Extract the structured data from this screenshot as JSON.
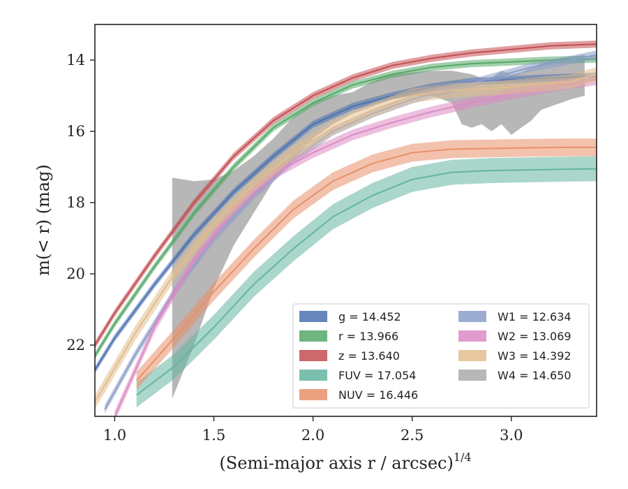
{
  "chart_data": {
    "type": "line",
    "xlabel": "(Semi-major axis r / arcsec)",
    "xlabel_exponent": "1/4",
    "ylabel": "m(< r) (mag)",
    "xlim": [
      0.9,
      3.43
    ],
    "ylim": [
      24.0,
      13.0
    ],
    "y_inverted": true,
    "grid": false,
    "legend_position": "lower-right",
    "x_ticks": [
      1.0,
      1.5,
      2.0,
      2.5,
      3.0
    ],
    "x_tick_labels": [
      "1.0",
      "1.5",
      "2.0",
      "2.5",
      "3.0"
    ],
    "y_ticks": [
      14,
      16,
      18,
      20,
      22
    ],
    "y_tick_labels": [
      "14",
      "16",
      "18",
      "20",
      "22"
    ],
    "series": [
      {
        "name": "g = 14.452",
        "color": "#4c72b0",
        "x": [
          0.9,
          1.0,
          1.2,
          1.4,
          1.6,
          1.8,
          2.0,
          2.2,
          2.4,
          2.6,
          2.8,
          3.0,
          3.2,
          3.43
        ],
        "y": [
          22.7,
          21.8,
          20.3,
          18.9,
          17.7,
          16.7,
          15.8,
          15.3,
          15.0,
          14.75,
          14.6,
          14.55,
          14.5,
          14.45
        ],
        "band": 0.1
      },
      {
        "name": "r = 13.966",
        "color": "#55a868",
        "x": [
          0.9,
          1.0,
          1.2,
          1.4,
          1.6,
          1.8,
          2.0,
          2.2,
          2.4,
          2.6,
          2.8,
          3.0,
          3.2,
          3.43
        ],
        "y": [
          22.3,
          21.4,
          19.8,
          18.3,
          17.0,
          15.9,
          15.2,
          14.7,
          14.4,
          14.2,
          14.1,
          14.05,
          14.0,
          13.97
        ],
        "band": 0.1
      },
      {
        "name": "z = 13.640",
        "color": "#c44e52",
        "x": [
          0.9,
          1.0,
          1.2,
          1.4,
          1.6,
          1.8,
          2.0,
          2.2,
          2.4,
          2.6,
          2.8,
          3.0,
          3.2,
          3.43
        ],
        "y": [
          22.0,
          21.1,
          19.5,
          18.0,
          16.7,
          15.7,
          15.0,
          14.5,
          14.15,
          13.95,
          13.8,
          13.7,
          13.6,
          13.55
        ],
        "band": 0.1
      },
      {
        "name": "FUV = 17.054",
        "color": "#64b5a0",
        "x": [
          1.11,
          1.3,
          1.5,
          1.7,
          1.9,
          2.1,
          2.3,
          2.5,
          2.7,
          2.9,
          3.1,
          3.3,
          3.43
        ],
        "y": [
          23.4,
          22.6,
          21.5,
          20.3,
          19.3,
          18.4,
          17.8,
          17.35,
          17.15,
          17.1,
          17.08,
          17.06,
          17.05
        ],
        "band": 0.35
      },
      {
        "name": "NUV = 16.446",
        "color": "#e8906a",
        "x": [
          1.11,
          1.3,
          1.5,
          1.7,
          1.9,
          2.1,
          2.3,
          2.5,
          2.7,
          2.9,
          3.1,
          3.3,
          3.43
        ],
        "y": [
          23.0,
          21.8,
          20.5,
          19.3,
          18.2,
          17.4,
          16.9,
          16.6,
          16.5,
          16.48,
          16.46,
          16.45,
          16.45
        ],
        "band": 0.25
      },
      {
        "name": "W1 = 12.634",
        "color": "#8c9fca",
        "x": [
          0.95,
          1.1,
          1.3,
          1.5,
          1.7,
          1.9,
          2.1,
          2.3,
          2.5,
          2.7,
          2.9,
          3.1,
          3.3,
          3.43
        ],
        "y": [
          23.8,
          22.3,
          20.5,
          19.0,
          17.8,
          16.8,
          16.0,
          15.5,
          15.1,
          14.8,
          14.5,
          14.2,
          14.0,
          13.85
        ],
        "band": 0.12
      },
      {
        "name": "W2 = 13.069",
        "color": "#dc8bc4",
        "x": [
          1.0,
          1.2,
          1.4,
          1.6,
          1.8,
          2.0,
          2.2,
          2.4,
          2.6,
          2.8,
          3.0,
          3.2,
          3.43
        ],
        "y": [
          24.0,
          21.5,
          19.6,
          18.2,
          17.2,
          16.6,
          16.1,
          15.75,
          15.45,
          15.2,
          14.95,
          14.75,
          14.55
        ],
        "band": 0.15
      },
      {
        "name": "W3 = 14.392",
        "color": "#e2bd8e",
        "x": [
          0.9,
          1.1,
          1.3,
          1.5,
          1.7,
          1.9,
          2.1,
          2.3,
          2.5,
          2.7,
          2.9,
          3.1,
          3.3,
          3.43
        ],
        "y": [
          23.6,
          21.7,
          20.0,
          18.6,
          17.5,
          16.6,
          15.9,
          15.4,
          15.0,
          14.85,
          14.8,
          14.7,
          14.6,
          14.4
        ],
        "band": 0.2
      },
      {
        "name": "W4 = 14.650",
        "color": "#aaaaaa",
        "fill_only": true,
        "x": [
          1.29,
          1.4,
          1.5,
          1.6,
          1.7,
          1.8,
          1.9,
          2.0,
          2.1,
          2.2,
          2.3,
          2.4,
          2.5,
          2.6,
          2.7,
          2.75,
          2.8,
          2.85,
          2.9,
          2.95,
          3.0,
          3.05,
          3.1,
          3.15,
          3.2,
          3.25,
          3.3,
          3.37
        ],
        "y_low": [
          23.5,
          22.0,
          20.4,
          19.2,
          18.3,
          17.4,
          16.8,
          16.2,
          15.8,
          15.5,
          15.3,
          15.1,
          15.0,
          15.0,
          15.2,
          15.8,
          15.9,
          15.8,
          16.0,
          15.8,
          16.1,
          15.9,
          15.7,
          15.4,
          15.3,
          15.2,
          15.1,
          15.0
        ],
        "y_high": [
          17.3,
          17.4,
          17.35,
          17.1,
          16.7,
          16.2,
          15.6,
          15.2,
          15.0,
          14.9,
          14.6,
          14.4,
          14.35,
          14.3,
          14.3,
          14.35,
          14.4,
          14.5,
          14.5,
          14.3,
          14.4,
          14.35,
          14.2,
          14.1,
          14.0,
          13.95,
          13.9,
          13.85
        ]
      }
    ]
  },
  "legend": {
    "col1": [
      "g = 14.452",
      "r = 13.966",
      "z = 13.640",
      "FUV = 17.054",
      "NUV = 16.446"
    ],
    "col2": [
      "W1 = 12.634",
      "W2 = 13.069",
      "W3 = 14.392",
      "W4 = 14.650"
    ]
  }
}
